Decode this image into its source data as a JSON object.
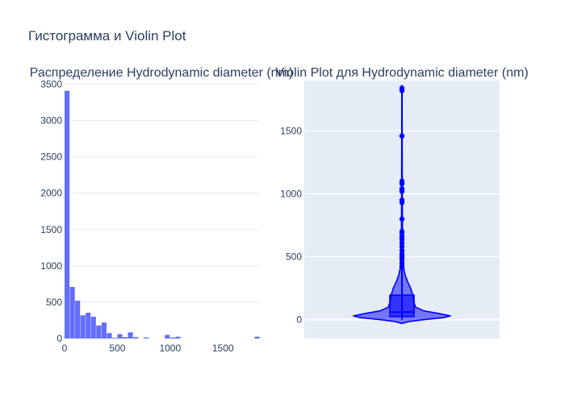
{
  "title": "Гистограмма и Violin Plot",
  "chart_data": [
    {
      "type": "histogram",
      "subtitle": "Распределение Hydrodynamic diameter (nm)",
      "color": "#636efa",
      "bin_width": 50,
      "xlim": [
        0,
        1850
      ],
      "ylim": [
        0,
        3550
      ],
      "xticks": [
        0,
        500,
        1000,
        1500
      ],
      "yticks": [
        0,
        500,
        1000,
        1500,
        2000,
        2500,
        3000,
        3500
      ],
      "bins": [
        {
          "x0": 0,
          "count": 3410
        },
        {
          "x0": 50,
          "count": 710
        },
        {
          "x0": 100,
          "count": 520
        },
        {
          "x0": 150,
          "count": 320
        },
        {
          "x0": 200,
          "count": 355
        },
        {
          "x0": 250,
          "count": 300
        },
        {
          "x0": 300,
          "count": 180
        },
        {
          "x0": 350,
          "count": 220
        },
        {
          "x0": 400,
          "count": 75
        },
        {
          "x0": 450,
          "count": 10
        },
        {
          "x0": 500,
          "count": 60
        },
        {
          "x0": 550,
          "count": 20
        },
        {
          "x0": 600,
          "count": 85
        },
        {
          "x0": 650,
          "count": 20
        },
        {
          "x0": 750,
          "count": 15
        },
        {
          "x0": 950,
          "count": 50
        },
        {
          "x0": 1000,
          "count": 15
        },
        {
          "x0": 1050,
          "count": 25
        },
        {
          "x0": 1800,
          "count": 25
        }
      ]
    },
    {
      "type": "violin",
      "subtitle": "Violin Plot для Hydrodynamic diameter (nm)",
      "color": "#0000ff",
      "ylim": [
        -150,
        1900
      ],
      "yticks": [
        0,
        500,
        1000,
        1500
      ],
      "box": {
        "q1": 25,
        "median": 60,
        "q3": 195,
        "whisker_low": 0,
        "whisker_high": 1860
      },
      "outliers": [
        420,
        450,
        480,
        500,
        520,
        550,
        580,
        610,
        640,
        660,
        690,
        700,
        800,
        930,
        950,
        1020,
        1040,
        1080,
        1100,
        1460,
        1820,
        1840
      ],
      "density": [
        {
          "y": -30,
          "w": 0.0
        },
        {
          "y": -15,
          "w": 0.15
        },
        {
          "y": 0,
          "w": 0.45
        },
        {
          "y": 15,
          "w": 0.85
        },
        {
          "y": 30,
          "w": 1.0
        },
        {
          "y": 50,
          "w": 0.75
        },
        {
          "y": 70,
          "w": 0.45
        },
        {
          "y": 100,
          "w": 0.28
        },
        {
          "y": 150,
          "w": 0.24
        },
        {
          "y": 200,
          "w": 0.22
        },
        {
          "y": 250,
          "w": 0.18
        },
        {
          "y": 300,
          "w": 0.12
        },
        {
          "y": 350,
          "w": 0.07
        },
        {
          "y": 400,
          "w": 0.04
        },
        {
          "y": 500,
          "w": 0.025
        },
        {
          "y": 650,
          "w": 0.012
        },
        {
          "y": 1000,
          "w": 0.006
        },
        {
          "y": 1860,
          "w": 0.004
        }
      ]
    }
  ]
}
